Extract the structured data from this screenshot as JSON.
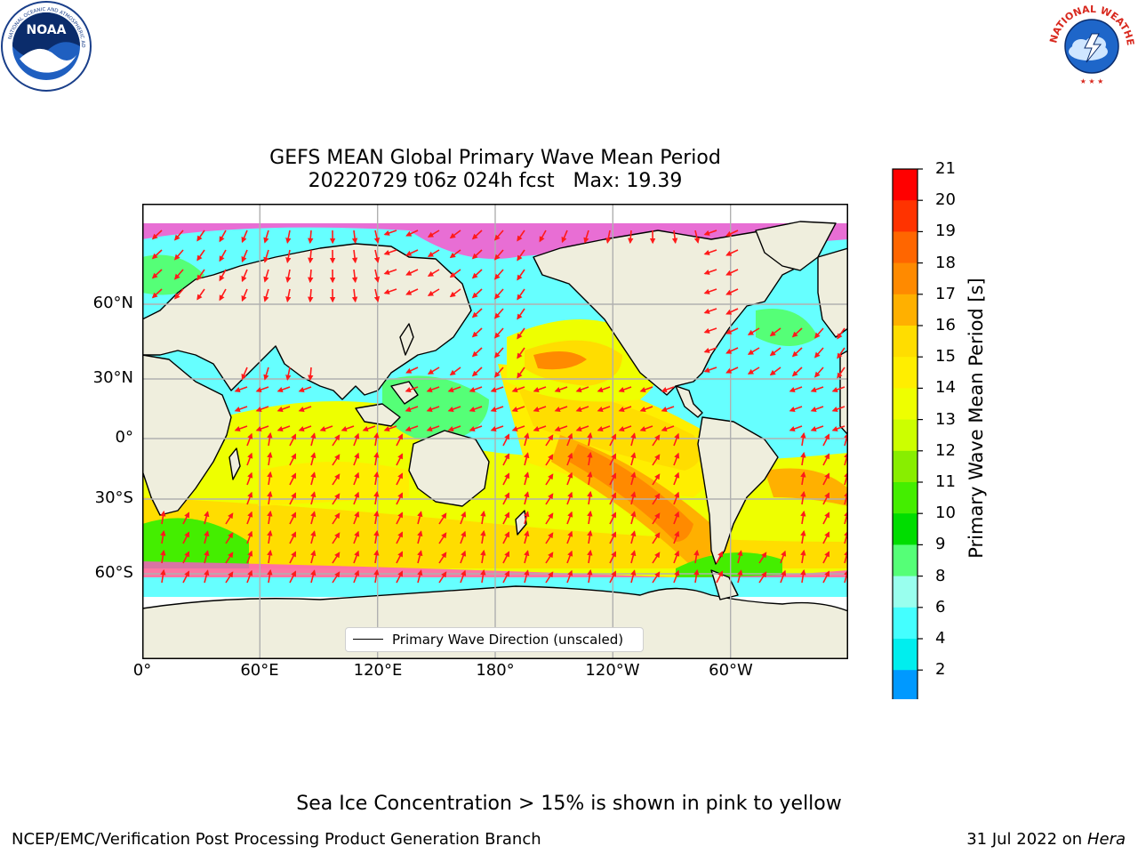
{
  "title": {
    "line1": "GEFS MEAN Global Primary Wave Mean Period",
    "line2": "20220729 t06z 024h fcst   Max: 19.39"
  },
  "map": {
    "lon_range": [
      0,
      360
    ],
    "lat_range": [
      -90,
      90
    ],
    "gridlines": true,
    "lat_ticks": [
      "60°N",
      "30°N",
      "0°",
      "30°S",
      "60°S"
    ],
    "lon_ticks": [
      "0°",
      "60°E",
      "120°E",
      "180°",
      "120°W",
      "60°W"
    ],
    "legend": "Primary Wave Direction (unscaled)",
    "land_color": "#efeedd",
    "arrow_color": "#ff1a1a"
  },
  "colorbar": {
    "label": "Primary Wave Mean Period [s]",
    "ticks": [
      "21",
      "20",
      "19",
      "18",
      "17",
      "16",
      "15",
      "14",
      "13",
      "12",
      "11",
      "10",
      "9",
      "8",
      "6",
      "4",
      "2"
    ],
    "colors": [
      "#ff0000",
      "#ff3300",
      "#ff6600",
      "#ff8a00",
      "#ffb000",
      "#ffdd00",
      "#ffee00",
      "#eeff00",
      "#ccff00",
      "#88ee00",
      "#44ee00",
      "#00dd00",
      "#55ff77",
      "#99ffee",
      "#44ffff",
      "#00eeee",
      "#0099ff",
      "#0055ff"
    ],
    "underflow_color": "#0000ee"
  },
  "footer": {
    "note": "Sea Ice Concentration > 15% is shown in pink to yellow",
    "left": "NCEP/EMC/Verification Post Processing Product Generation Branch",
    "right_date": "31 Jul 2022 on",
    "right_host": "Hera"
  },
  "logos": {
    "left": "NOAA",
    "right": "NATIONAL WEATHER SERVICE"
  }
}
